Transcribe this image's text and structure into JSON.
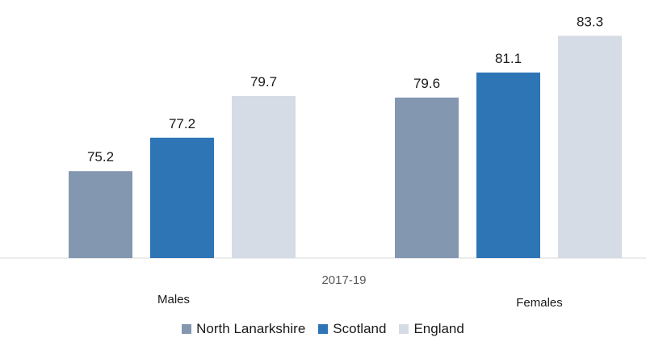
{
  "chart_data": {
    "type": "bar",
    "period": "2017-19",
    "categories": [
      "Males",
      "Females"
    ],
    "series": [
      {
        "name": "North Lanarkshire",
        "color": "#8497b0",
        "values": [
          75.2,
          79.6
        ]
      },
      {
        "name": "Scotland",
        "color": "#2e75b6",
        "values": [
          77.2,
          81.1
        ]
      },
      {
        "name": "England",
        "color": "#d6dce5",
        "values": [
          79.7,
          83.3
        ]
      }
    ],
    "ylim": [
      70,
      83.75
    ],
    "grid": false,
    "legend_position": "bottom"
  }
}
